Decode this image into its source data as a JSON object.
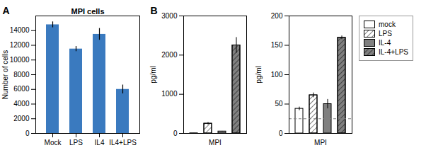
{
  "chart_data": [
    {
      "type": "bar",
      "title": "MPI cells",
      "annotations": [
        "A"
      ],
      "categories": [
        "Mock",
        "LPS",
        "IL4",
        "IL4+LPS"
      ],
      "values": [
        14800,
        11500,
        13500,
        6000
      ],
      "errors": [
        400,
        350,
        800,
        600
      ],
      "color": "#3a7abf",
      "ylabel": "Number of cells",
      "ylim": [
        0,
        16000
      ],
      "yticks": [
        0,
        2000,
        4000,
        6000,
        8000,
        10000,
        12000,
        14000
      ],
      "grid": false
    },
    {
      "type": "bar",
      "annotations": [
        "B"
      ],
      "categories": [
        "MPI"
      ],
      "series": [
        {
          "name": "mock",
          "color": "white",
          "values": [
            5
          ],
          "errors": [
            2
          ]
        },
        {
          "name": "LPS",
          "color": "white",
          "values": [
            250
          ],
          "errors": [
            30
          ]
        },
        {
          "name": "IL-4",
          "color": "gray",
          "values": [
            50
          ],
          "errors": [
            5
          ]
        },
        {
          "name": "IL-4+LPS",
          "color": "gray",
          "values": [
            2250
          ],
          "errors": [
            200
          ]
        }
      ],
      "ylabel": "pg/ml",
      "ylim": [
        0,
        3000
      ],
      "yticks": [
        0,
        1000,
        2000,
        3000
      ],
      "grid": false
    },
    {
      "type": "bar",
      "categories": [
        "MPI"
      ],
      "series": [
        {
          "name": "mock",
          "color": "white",
          "values": [
            42
          ],
          "errors": [
            3
          ]
        },
        {
          "name": "LPS",
          "color": "white",
          "values": [
            65
          ],
          "errors": [
            4
          ]
        },
        {
          "name": "IL-4",
          "color": "gray",
          "values": [
            50
          ],
          "errors": [
            8
          ]
        },
        {
          "name": "IL-4+LPS",
          "color": "gray",
          "values": [
            163
          ],
          "errors": [
            3
          ]
        }
      ],
      "dashed_line": 25,
      "ylabel": "pg/ml",
      "ylim": [
        0,
        200
      ],
      "yticks": [
        0,
        50,
        100,
        150,
        200
      ],
      "grid": false,
      "legend": "right"
    }
  ]
}
